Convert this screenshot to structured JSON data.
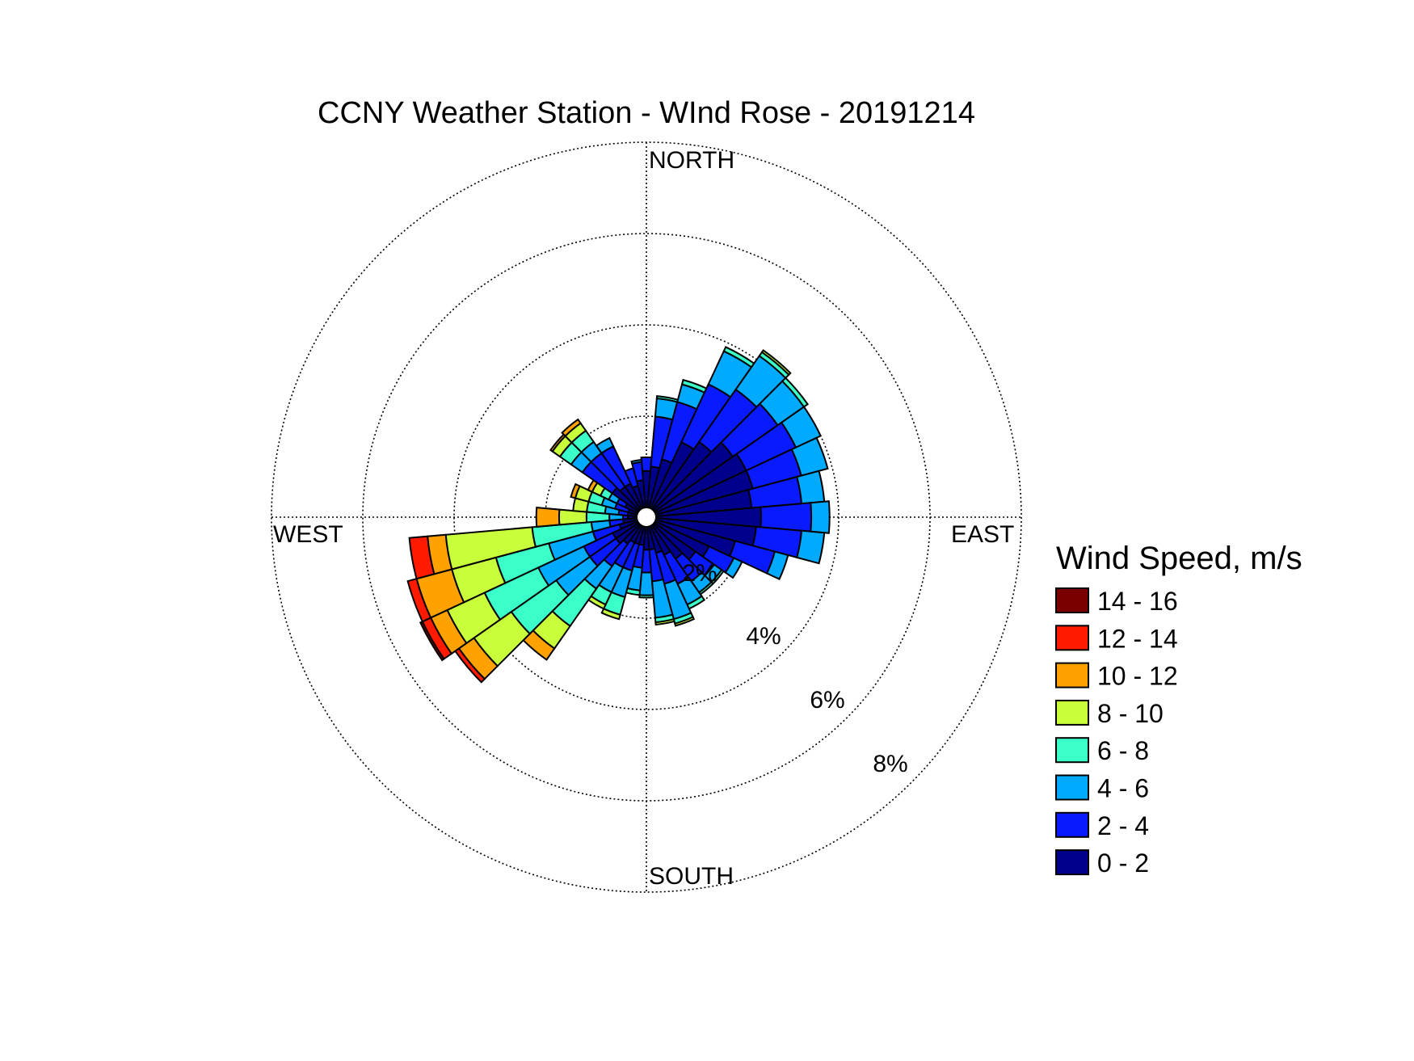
{
  "chart_data": {
    "type": "wind_rose",
    "title": "CCNY Weather Station - WInd Rose - 20191214",
    "direction_labels": {
      "north": "NORTH",
      "east": "EAST",
      "south": "SOUTH",
      "west": "WEST"
    },
    "rings": [
      {
        "value": 2,
        "label": "2%"
      },
      {
        "value": 4,
        "label": "4%"
      },
      {
        "value": 6,
        "label": "6%"
      },
      {
        "value": 8,
        "label": "8%"
      }
    ],
    "r_max_percent": 8,
    "grid": true,
    "legend": {
      "title": "Wind Speed, m/s",
      "placement": "right",
      "entries": [
        {
          "label": "14 - 16",
          "color": "#7a0000"
        },
        {
          "label": "12 - 14",
          "color": "#ff1a00"
        },
        {
          "label": "10 - 12",
          "color": "#ffa200"
        },
        {
          "label": "8 - 10",
          "color": "#c8ff3a"
        },
        {
          "label": "6 - 8",
          "color": "#3affc8"
        },
        {
          "label": "4 - 6",
          "color": "#00aaff"
        },
        {
          "label": "2 - 4",
          "color": "#0a1aff"
        },
        {
          "label": "0 - 2",
          "color": "#00008c"
        }
      ]
    },
    "bin_colors_low_to_high": [
      "#00008c",
      "#0a1aff",
      "#00aaff",
      "#3affc8",
      "#c8ff3a",
      "#ffa200",
      "#ff1a00",
      "#7a0000"
    ],
    "direction_bin_width_deg": 10,
    "sectors": [
      {
        "dir": 0,
        "values": [
          0.8,
          0.3
        ]
      },
      {
        "dir": 10,
        "values": [
          0.9,
          1.1,
          0.4,
          0.05
        ]
      },
      {
        "dir": 20,
        "values": [
          1.1,
          1.3,
          0.4,
          0.1
        ]
      },
      {
        "dir": 30,
        "values": [
          1.6,
          1.4,
          0.8,
          0.1
        ]
      },
      {
        "dir": 40,
        "values": [
          1.8,
          1.4,
          0.9,
          0.1,
          0.05
        ]
      },
      {
        "dir": 50,
        "values": [
          2.1,
          1.2,
          0.7,
          0.1
        ]
      },
      {
        "dir": 60,
        "values": [
          2.2,
          1.2,
          0.6
        ]
      },
      {
        "dir": 70,
        "values": [
          2.2,
          1.1,
          0.6
        ]
      },
      {
        "dir": 80,
        "values": [
          2.1,
          1.1,
          0.5
        ]
      },
      {
        "dir": 90,
        "values": [
          2.3,
          1.1,
          0.4
        ]
      },
      {
        "dir": 100,
        "values": [
          2.2,
          1.0,
          0.5
        ]
      },
      {
        "dir": 110,
        "values": [
          1.8,
          0.9,
          0.3
        ]
      },
      {
        "dir": 120,
        "values": [
          1.3,
          0.6,
          0.2
        ]
      },
      {
        "dir": 130,
        "values": [
          1.1,
          0.5,
          0.2,
          0.05
        ]
      },
      {
        "dir": 140,
        "values": [
          0.9,
          0.6,
          0.3,
          0.05
        ]
      },
      {
        "dir": 150,
        "values": [
          0.7,
          0.7,
          0.5,
          0.1
        ]
      },
      {
        "dir": 160,
        "values": [
          0.6,
          0.7,
          0.8,
          0.1,
          0.05
        ]
      },
      {
        "dir": 170,
        "values": [
          0.5,
          0.7,
          0.8,
          0.1,
          0.05
        ]
      },
      {
        "dir": 180,
        "values": [
          0.5,
          0.5,
          0.5,
          0.05
        ]
      },
      {
        "dir": 190,
        "values": [
          0.4,
          0.5,
          0.5,
          0.1
        ]
      },
      {
        "dir": 200,
        "values": [
          0.4,
          0.6,
          0.6,
          0.4,
          0.1
        ]
      },
      {
        "dir": 210,
        "values": [
          0.4,
          0.6,
          0.6,
          0.3,
          0.1
        ]
      },
      {
        "dir": 220,
        "values": [
          0.5,
          0.6,
          0.6,
          1.0,
          0.6,
          0.3
        ]
      },
      {
        "dir": 230,
        "values": [
          0.6,
          0.7,
          0.9,
          1.2,
          1.0,
          0.4,
          0.1
        ]
      },
      {
        "dir": 240,
        "values": [
          0.6,
          0.7,
          1.1,
          1.3,
          0.9,
          0.4,
          0.2,
          0.05
        ]
      },
      {
        "dir": 250,
        "values": [
          0.4,
          0.6,
          1.0,
          1.2,
          1.0,
          0.8,
          0.2
        ]
      },
      {
        "dir": 260,
        "values": [
          0.3,
          0.3,
          0.4,
          1.3,
          1.9,
          0.4,
          0.4
        ]
      },
      {
        "dir": 270,
        "values": [
          0.2,
          0.1,
          0.3,
          0.5,
          0.6,
          0.5
        ]
      },
      {
        "dir": 280,
        "values": [
          0.2,
          0.2,
          0.3,
          0.4,
          0.3
        ]
      },
      {
        "dir": 290,
        "values": [
          0.2,
          0.3,
          0.3,
          0.3,
          0.3,
          0.1
        ]
      },
      {
        "dir": 300,
        "values": [
          0.3,
          0.2,
          0.2,
          0.2,
          0.2,
          0.1
        ]
      },
      {
        "dir": 310,
        "values": [
          0.7,
          0.8,
          0.3,
          0.3,
          0.2,
          0.05
        ]
      },
      {
        "dir": 320,
        "values": [
          0.6,
          0.9,
          0.3,
          0.3,
          0.2,
          0.1
        ]
      },
      {
        "dir": 330,
        "values": [
          0.6,
          0.9,
          0.2
        ]
      },
      {
        "dir": 340,
        "values": [
          0.5,
          0.4
        ]
      },
      {
        "dir": 350,
        "values": [
          0.6,
          0.4,
          0.05
        ]
      }
    ]
  }
}
